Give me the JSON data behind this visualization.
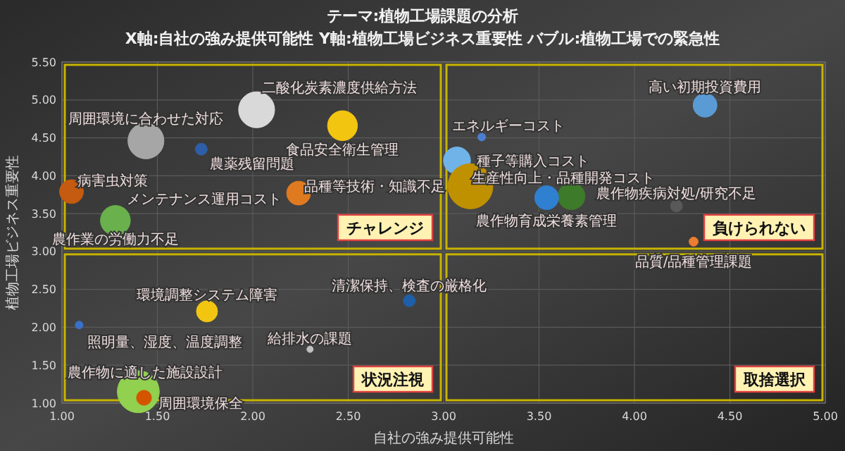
{
  "chart_data": {
    "type": "bubble",
    "title": "テーマ:植物工場課題の分析",
    "subtitle": "X軸:自社の強み提供可能性 Y軸:植物工場ビジネス重要性 バブル:植物工場での緊急性",
    "xlabel": "自社の強み提供可能性",
    "ylabel": "植物工場ビジネス重要性",
    "xlim": [
      1,
      5
    ],
    "xticks": [
      {
        "value": 1,
        "label": "1.00"
      },
      {
        "value": 1.5,
        "label": "1.50"
      },
      {
        "value": 2,
        "label": "2.00"
      },
      {
        "value": 2.5,
        "label": "2.50"
      },
      {
        "value": 3,
        "label": "3.00"
      },
      {
        "value": 3.5,
        "label": "3.50"
      },
      {
        "value": 4,
        "label": "4.00"
      },
      {
        "value": 4.5,
        "label": "4.50"
      },
      {
        "value": 5,
        "label": "5.00"
      }
    ],
    "ylim": [
      1,
      5.5
    ],
    "yticks": [
      {
        "value": 1,
        "label": "1.00"
      },
      {
        "value": 1.5,
        "label": "1.50"
      },
      {
        "value": 2,
        "label": "2.00"
      },
      {
        "value": 2.5,
        "label": "2.50"
      },
      {
        "value": 3,
        "label": "3.00"
      },
      {
        "value": 3.5,
        "label": "3.50"
      },
      {
        "value": 4,
        "label": "4.00"
      },
      {
        "value": 4.5,
        "label": "4.50"
      },
      {
        "value": 5,
        "label": "5.00"
      },
      {
        "value": 5.5,
        "label": "5.50"
      }
    ],
    "grid": true,
    "legend": false,
    "annotations": [
      "チャレンジ",
      "負けられない",
      "状況注視",
      "取捨選択"
    ],
    "series": [
      {
        "name": "二酸化炭素濃度供給方法",
        "color": "#d9d9d9",
        "x": [
          2.02
        ],
        "values": [
          4.87
        ],
        "sizes": [
          0.64
        ]
      },
      {
        "name": "周囲環境に合わせた対応",
        "color": "#a6a6a6",
        "x": [
          1.44
        ],
        "values": [
          4.46
        ],
        "sizes": [
          0.64
        ]
      },
      {
        "name": "農薬残留問題",
        "color": "#2e5ea8",
        "x": [
          1.73
        ],
        "values": [
          4.35
        ],
        "sizes": [
          0.07
        ]
      },
      {
        "name": "食品安全衛生管理",
        "color": "#f2c511",
        "x": [
          2.47
        ],
        "values": [
          4.66
        ],
        "sizes": [
          0.44
        ]
      },
      {
        "name": "病害虫対策",
        "color": "#c55a11",
        "x": [
          1.05
        ],
        "values": [
          3.79
        ],
        "sizes": [
          0.28
        ]
      },
      {
        "name": "メンテナンス運用コスト",
        "color": "#e07a20",
        "x": [
          2.24
        ],
        "values": [
          3.77
        ],
        "sizes": [
          0.28
        ]
      },
      {
        "name": "農作業の労働力不足",
        "color": "#6ab04c",
        "x": [
          1.28
        ],
        "values": [
          3.41
        ],
        "sizes": [
          0.44
        ]
      },
      {
        "name": "高い初期投資費用",
        "color": "#5b9bd5",
        "x": [
          4.37
        ],
        "values": [
          4.93
        ],
        "sizes": [
          0.28
        ]
      },
      {
        "name": "エネルギーコスト",
        "color": "#4a7fd0",
        "x": [
          3.2
        ],
        "values": [
          4.51
        ],
        "sizes": [
          0.03
        ]
      },
      {
        "name": "種子等購入コスト",
        "color": "#6fb3e8",
        "x": [
          3.07
        ],
        "values": [
          4.2
        ],
        "sizes": [
          0.36
        ]
      },
      {
        "name": "品種等技術・知識不足",
        "color": "#bf9000",
        "x": [
          3.14
        ],
        "values": [
          3.86
        ],
        "sizes": [
          1
        ]
      },
      {
        "name": "生産性向上・品種開発コスト",
        "color": "#3d7a2a",
        "x": [
          3.67
        ],
        "values": [
          3.73
        ],
        "sizes": [
          0.36
        ]
      },
      {
        "name": "農作物育成栄養素管理",
        "color": "#2f80d0",
        "x": [
          3.54
        ],
        "values": [
          3.71
        ],
        "sizes": [
          0.28
        ]
      },
      {
        "name": "農作物疾病対処/研究不足",
        "color": "#595959",
        "x": [
          4.22
        ],
        "values": [
          3.6
        ],
        "sizes": [
          0.07
        ]
      },
      {
        "name": "品質/品種管理課題",
        "color": "#ed7d31",
        "x": [
          4.31
        ],
        "values": [
          3.13
        ],
        "sizes": [
          0.04
        ]
      },
      {
        "name": "清潔保持、検査の厳格化",
        "color": "#1f5fa8",
        "x": [
          2.82
        ],
        "values": [
          2.35
        ],
        "sizes": [
          0.07
        ]
      },
      {
        "name": "環境調整システム障害",
        "color": "#f2c511",
        "x": [
          1.76
        ],
        "values": [
          2.21
        ],
        "sizes": [
          0.22
        ]
      },
      {
        "name": "照明量、湿度、温度調整",
        "color": "#3a70c8",
        "x": [
          1.09
        ],
        "values": [
          2.03
        ],
        "sizes": [
          0.03
        ]
      },
      {
        "name": "給排水の課題",
        "color": "#bfbfbf",
        "x": [
          2.3
        ],
        "values": [
          1.71
        ],
        "sizes": [
          0.02
        ]
      },
      {
        "name": "農作物に適した施設設計",
        "color": "#92d050",
        "x": [
          1.4
        ],
        "values": [
          1.15
        ],
        "sizes": [
          0.87
        ]
      },
      {
        "name": "周囲環境保全",
        "color": "#d45500",
        "x": [
          1.43
        ],
        "values": [
          1.07
        ],
        "sizes": [
          0.11
        ]
      }
    ]
  }
}
